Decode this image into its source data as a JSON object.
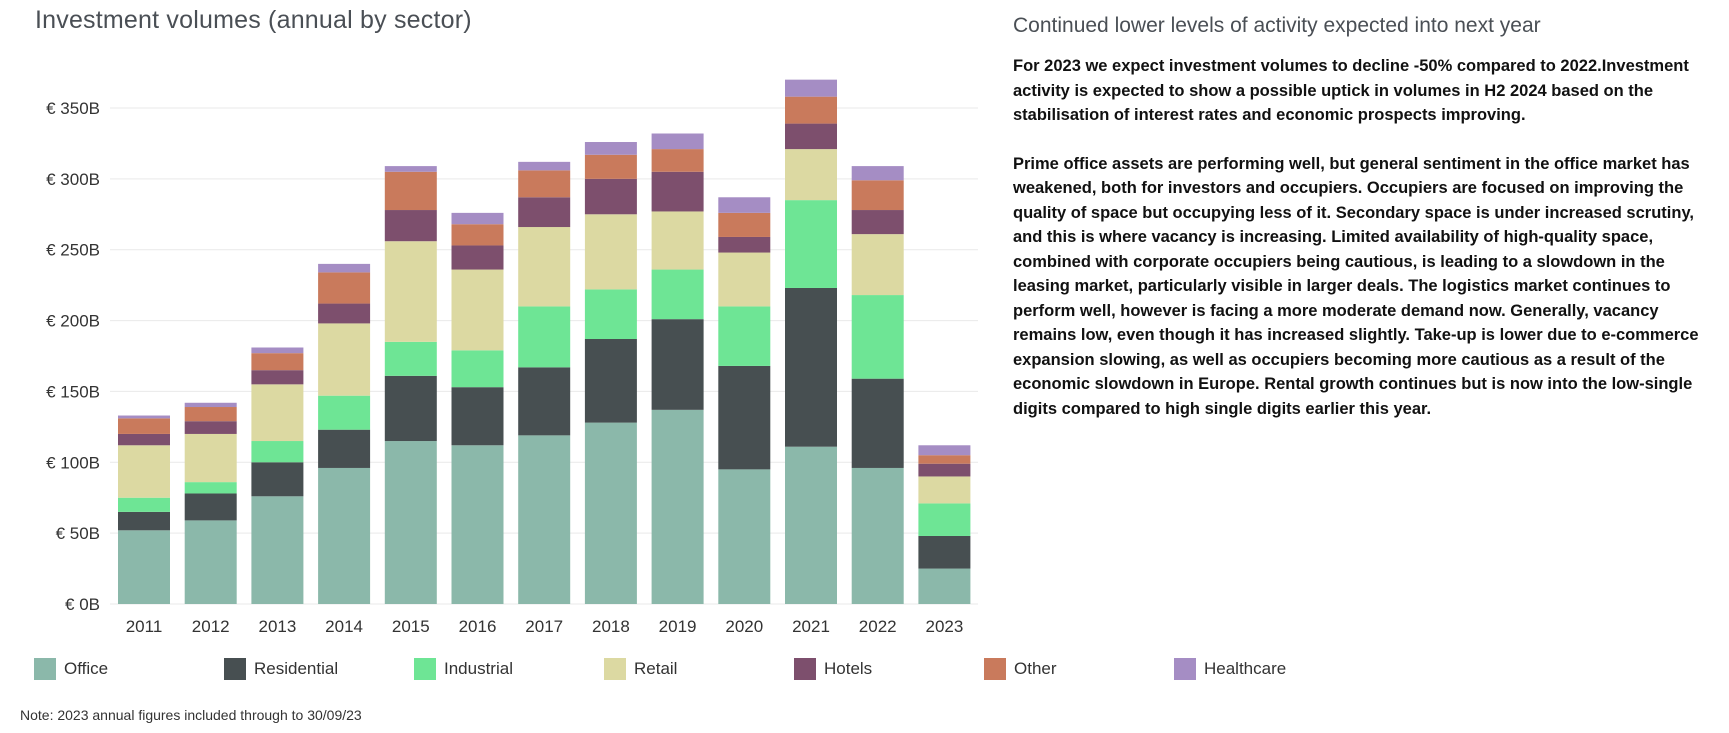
{
  "chart_data": {
    "type": "bar",
    "stacked": true,
    "title": "Investment volumes (annual by sector)",
    "xlabel": "",
    "ylabel": "",
    "ylim": [
      0,
      350
    ],
    "yticks": [
      0,
      50,
      100,
      150,
      200,
      250,
      300,
      350
    ],
    "ytick_labels": [
      "€ 0B",
      "€ 50B",
      "€ 100B",
      "€ 150B",
      "€ 200B",
      "€ 250B",
      "€ 300B",
      "€ 350B"
    ],
    "grid": true,
    "legend_position": "bottom",
    "categories": [
      "2011",
      "2012",
      "2013",
      "2014",
      "2015",
      "2016",
      "2017",
      "2018",
      "2019",
      "2020",
      "2021",
      "2022",
      "2023"
    ],
    "series": [
      {
        "name": "Office",
        "color": "#8bb8aa",
        "values": [
          52,
          59,
          76,
          96,
          115,
          112,
          119,
          128,
          137,
          95,
          111,
          96,
          25
        ]
      },
      {
        "name": "Residential",
        "color": "#474f51",
        "values": [
          13,
          19,
          24,
          27,
          46,
          41,
          48,
          59,
          64,
          73,
          112,
          63,
          23
        ]
      },
      {
        "name": "Industrial",
        "color": "#6ee595",
        "values": [
          10,
          8,
          15,
          24,
          24,
          26,
          43,
          35,
          35,
          42,
          62,
          59,
          23
        ]
      },
      {
        "name": "Retail",
        "color": "#dcd9a2",
        "values": [
          37,
          34,
          40,
          51,
          71,
          57,
          56,
          53,
          41,
          38,
          36,
          43,
          19
        ]
      },
      {
        "name": "Hotels",
        "color": "#7d4f6d",
        "values": [
          8,
          9,
          10,
          14,
          22,
          17,
          21,
          25,
          28,
          11,
          18,
          17,
          9
        ]
      },
      {
        "name": "Other",
        "color": "#c97a5c",
        "values": [
          11,
          10,
          12,
          22,
          27,
          15,
          19,
          17,
          16,
          17,
          19,
          21,
          6
        ]
      },
      {
        "name": "Healthcare",
        "color": "#a58dc4",
        "values": [
          2,
          3,
          4,
          6,
          4,
          8,
          6,
          9,
          11,
          11,
          12,
          10,
          7
        ]
      }
    ],
    "note": "Note: 2023 annual figures included through to 30/09/23"
  },
  "side": {
    "title": "Continued lower levels of activity expected into next year",
    "paragraph1": "For 2023 we expect investment volumes to decline -50% compared to 2022.Investment activity is expected to show a possible uptick in volumes in H2 2024 based on the stabilisation of interest rates and economic prospects improving.",
    "paragraph2": "Prime office assets are performing well, but general sentiment in the office market has weakened, both for investors and occupiers. Occupiers are focused on improving the quality of space but occupying less of it. Secondary space is under increased scrutiny, and this is where vacancy is increasing. Limited availability of high-quality space, combined with corporate occupiers being cautious, is leading to a slowdown in the leasing market, particularly visible in larger deals. The logistics market continues to perform well, however is facing a more moderate demand now. Generally, vacancy remains low, even though it has increased slightly. Take-up is lower due to e-commerce expansion slowing, as well as occupiers becoming more cautious as a result of the economic slowdown in Europe. Rental growth continues but is now into the low-single digits compared to high single digits earlier this year."
  }
}
